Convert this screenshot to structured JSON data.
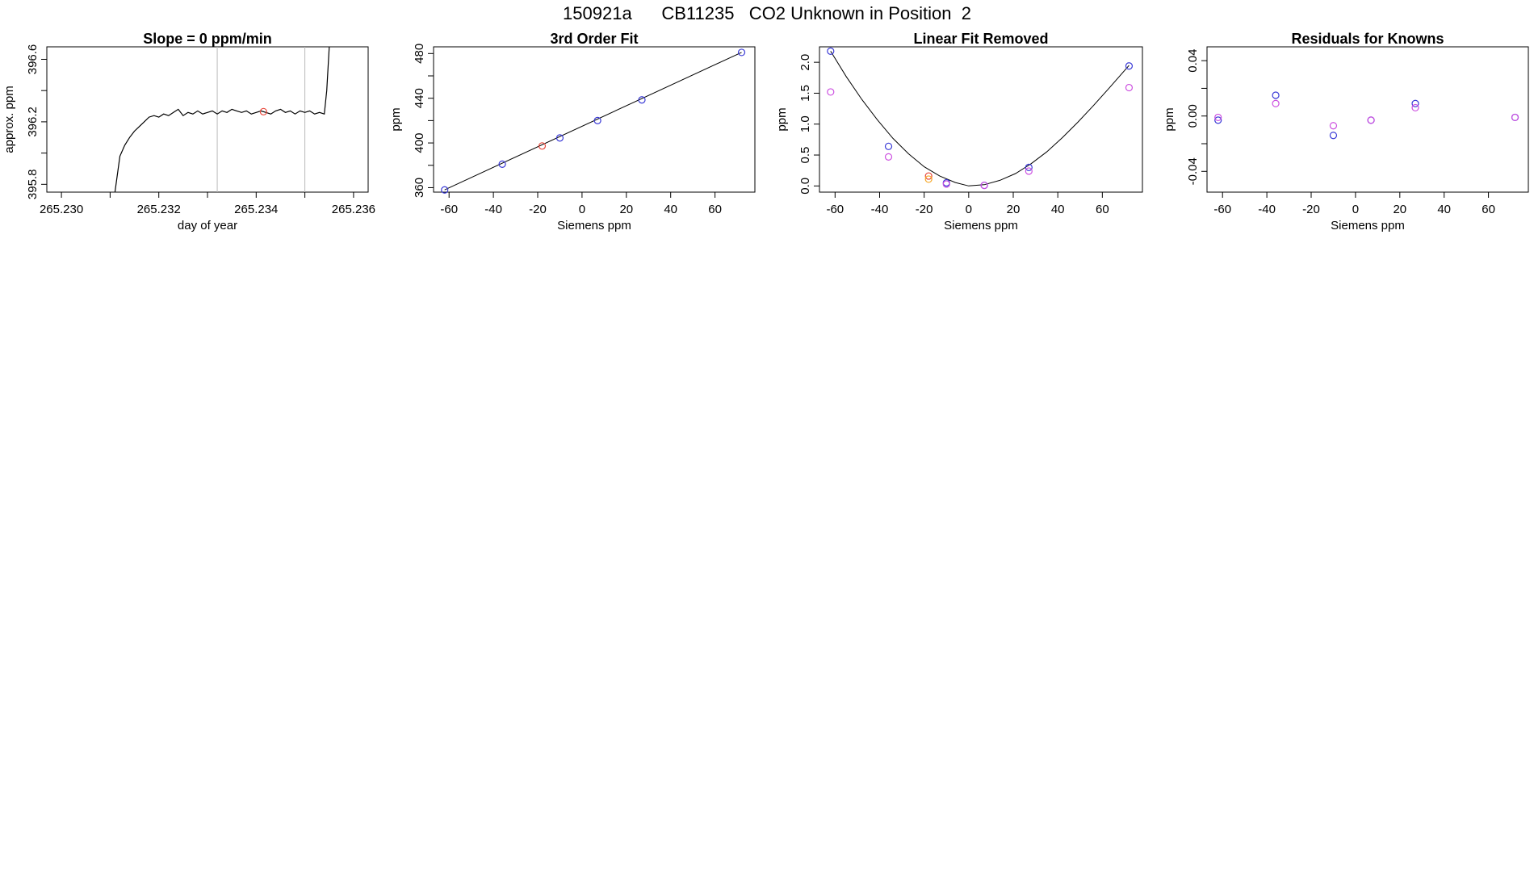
{
  "page_title": "150921a      CB11235   CO2 Unknown in Position  2",
  "chart_data": [
    {
      "type": "line",
      "title": "Slope =  0  ppm/min",
      "xlabel": "day of year",
      "ylabel": "approx. ppm",
      "xlim": [
        265.2297,
        265.2363
      ],
      "ylim": [
        395.75,
        396.68
      ],
      "xticks": [
        265.23,
        265.231,
        265.232,
        265.233,
        265.234,
        265.235,
        265.236
      ],
      "xtick_labels": [
        "265.230",
        "",
        "265.232",
        "",
        "265.234",
        "",
        "265.236"
      ],
      "yticks": [
        395.8,
        396.0,
        396.2,
        396.4,
        396.6
      ],
      "ytick_labels": [
        "395.8",
        "",
        "396.2",
        "",
        "396.6"
      ],
      "vlines": [
        265.2332,
        265.235
      ],
      "series": [
        {
          "color": "#000000",
          "x": [
            265.2311,
            265.2312,
            265.2313,
            265.2314,
            265.2315,
            265.2316,
            265.2317,
            265.2318,
            265.2319,
            265.232,
            265.2321,
            265.2322,
            265.2323,
            265.2324,
            265.2325,
            265.2326,
            265.2327,
            265.2328,
            265.2329,
            265.233,
            265.2331,
            265.2332,
            265.2333,
            265.2334,
            265.2335,
            265.2336,
            265.2337,
            265.2338,
            265.2339,
            265.234,
            265.2341,
            265.2342,
            265.2343,
            265.2344,
            265.2345,
            265.2346,
            265.2347,
            265.2348,
            265.2349,
            265.235,
            265.2351,
            265.2352,
            265.2353,
            265.2354,
            265.23545,
            265.2355
          ],
          "y": [
            395.75,
            395.98,
            396.05,
            396.1,
            396.14,
            396.17,
            396.2,
            396.23,
            396.24,
            396.23,
            396.25,
            396.24,
            396.26,
            396.28,
            396.24,
            396.26,
            396.25,
            396.27,
            396.25,
            396.26,
            396.27,
            396.25,
            396.27,
            396.26,
            396.28,
            396.27,
            396.26,
            396.27,
            396.25,
            396.26,
            396.27,
            396.26,
            396.25,
            396.27,
            396.28,
            396.26,
            396.27,
            396.25,
            396.27,
            396.26,
            396.27,
            396.25,
            396.26,
            396.25,
            396.4,
            396.68
          ]
        }
      ],
      "points": [
        {
          "x": 265.23415,
          "y": 396.265,
          "color": "#e8473a"
        }
      ]
    },
    {
      "type": "scatter",
      "title": "3rd Order Fit",
      "xlabel": "Siemens ppm",
      "ylabel": "ppm",
      "xlim": [
        -67,
        78
      ],
      "ylim": [
        356,
        486
      ],
      "xticks": [
        -60,
        -40,
        -20,
        0,
        20,
        40,
        60
      ],
      "xtick_labels": [
        "-60",
        "-40",
        "-20",
        "0",
        "20",
        "40",
        "60"
      ],
      "yticks": [
        360,
        380,
        400,
        420,
        440,
        460,
        480
      ],
      "ytick_labels": [
        "360",
        "",
        "400",
        "",
        "440",
        "",
        "480"
      ],
      "fit_line": {
        "x": [
          -62,
          72
        ],
        "y": [
          358.0,
          481.0
        ],
        "color": "#000000"
      },
      "points": [
        {
          "x": -62,
          "y": 358.0,
          "color": "#3a3ad6"
        },
        {
          "x": -36,
          "y": 381.0,
          "color": "#3a3ad6"
        },
        {
          "x": -18,
          "y": 397.3,
          "color": "#e8473a"
        },
        {
          "x": -10,
          "y": 404.5,
          "color": "#3a3ad6"
        },
        {
          "x": 7,
          "y": 420.0,
          "color": "#3a3ad6"
        },
        {
          "x": 27,
          "y": 438.5,
          "color": "#3a3ad6"
        },
        {
          "x": 72,
          "y": 481.0,
          "color": "#3a3ad6"
        }
      ]
    },
    {
      "type": "scatter",
      "title": "Linear Fit Removed",
      "xlabel": "Siemens ppm",
      "ylabel": "ppm",
      "xlim": [
        -67,
        78
      ],
      "ylim": [
        -0.1,
        2.25
      ],
      "xticks": [
        -60,
        -40,
        -20,
        0,
        20,
        40,
        60
      ],
      "xtick_labels": [
        "-60",
        "-40",
        "-20",
        "0",
        "20",
        "40",
        "60"
      ],
      "yticks": [
        0.0,
        0.5,
        1.0,
        1.5,
        2.0
      ],
      "ytick_labels": [
        "0.0",
        "0.5",
        "1.0",
        "1.5",
        "2.0"
      ],
      "fit_curve": {
        "color": "#000000",
        "x": [
          -62,
          -55,
          -48,
          -41,
          -34,
          -27,
          -20,
          -13,
          -6,
          0,
          7,
          14,
          21,
          28,
          35,
          42,
          49,
          56,
          63,
          72
        ],
        "y": [
          2.18,
          1.77,
          1.4,
          1.07,
          0.77,
          0.52,
          0.31,
          0.16,
          0.055,
          0.0,
          0.02,
          0.09,
          0.2,
          0.36,
          0.55,
          0.78,
          1.03,
          1.3,
          1.58,
          1.95
        ]
      },
      "points": [
        {
          "x": -62,
          "y": 2.18,
          "color": "#3a3ad6"
        },
        {
          "x": -62,
          "y": 1.52,
          "color": "#cc4fe0"
        },
        {
          "x": -36,
          "y": 0.64,
          "color": "#3a3ad6"
        },
        {
          "x": -36,
          "y": 0.47,
          "color": "#cc4fe0"
        },
        {
          "x": -18,
          "y": 0.16,
          "color": "#e8473a"
        },
        {
          "x": -18,
          "y": 0.11,
          "color": "#f5a623"
        },
        {
          "x": -10,
          "y": 0.05,
          "color": "#3a3ad6"
        },
        {
          "x": -10,
          "y": 0.03,
          "color": "#cc4fe0"
        },
        {
          "x": 7,
          "y": 0.01,
          "color": "#3a3ad6"
        },
        {
          "x": 7,
          "y": 0.01,
          "color": "#cc4fe0"
        },
        {
          "x": 27,
          "y": 0.3,
          "color": "#3a3ad6"
        },
        {
          "x": 27,
          "y": 0.24,
          "color": "#cc4fe0"
        },
        {
          "x": 72,
          "y": 1.94,
          "color": "#3a3ad6"
        },
        {
          "x": 72,
          "y": 1.59,
          "color": "#cc4fe0"
        }
      ]
    },
    {
      "type": "scatter",
      "title": "Residuals for Knowns",
      "xlabel": "Siemens ppm",
      "ylabel": "ppm",
      "xlim": [
        -67,
        78
      ],
      "ylim": [
        -0.055,
        0.05
      ],
      "xticks": [
        -60,
        -40,
        -20,
        0,
        20,
        40,
        60
      ],
      "xtick_labels": [
        "-60",
        "-40",
        "-20",
        "0",
        "20",
        "40",
        "60"
      ],
      "yticks": [
        -0.04,
        -0.02,
        0.0,
        0.02,
        0.04
      ],
      "ytick_labels": [
        "-0.04",
        "",
        "0.00",
        "",
        "0.04"
      ],
      "points": [
        {
          "x": -62,
          "y": -0.003,
          "color": "#3a3ad6"
        },
        {
          "x": -62,
          "y": -0.001,
          "color": "#cc4fe0"
        },
        {
          "x": -36,
          "y": 0.015,
          "color": "#3a3ad6"
        },
        {
          "x": -36,
          "y": 0.009,
          "color": "#cc4fe0"
        },
        {
          "x": -10,
          "y": -0.014,
          "color": "#3a3ad6"
        },
        {
          "x": -10,
          "y": -0.007,
          "color": "#cc4fe0"
        },
        {
          "x": 7,
          "y": -0.003,
          "color": "#3a3ad6"
        },
        {
          "x": 7,
          "y": -0.003,
          "color": "#cc4fe0"
        },
        {
          "x": 27,
          "y": 0.009,
          "color": "#3a3ad6"
        },
        {
          "x": 27,
          "y": 0.006,
          "color": "#cc4fe0"
        },
        {
          "x": 72,
          "y": -0.001,
          "color": "#3a3ad6"
        },
        {
          "x": 72,
          "y": -0.001,
          "color": "#cc4fe0"
        }
      ]
    }
  ]
}
